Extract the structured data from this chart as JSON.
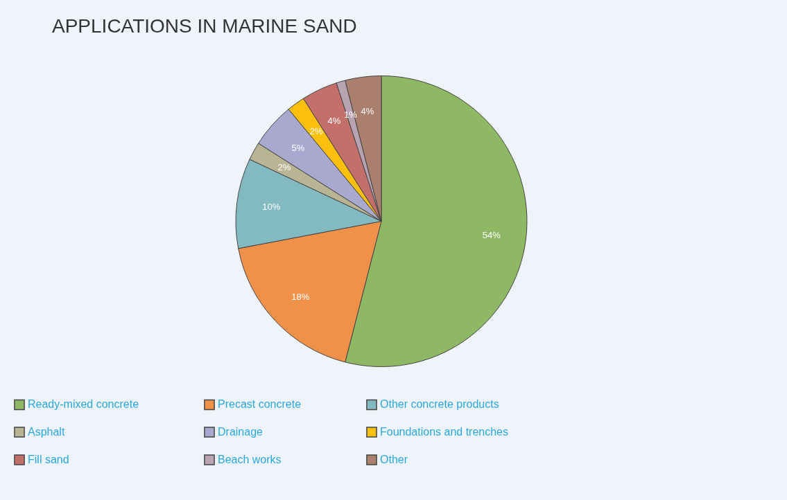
{
  "chart_data": {
    "type": "pie",
    "title": "APPLICATIONS IN MARINE SAND",
    "categories": [
      "Ready-mixed concrete",
      "Precast concrete",
      "Other concrete products",
      "Asphalt",
      "Drainage",
      "Foundations and trenches",
      "Fill sand",
      "Beach works",
      "Other"
    ],
    "values": [
      54,
      18,
      10,
      2,
      5,
      2,
      4,
      1,
      4
    ],
    "value_labels": [
      "54%",
      "18%",
      "10%",
      "2%",
      "5%",
      "2%",
      "4%",
      "1%",
      "4%"
    ],
    "colors": [
      "#8fb864",
      "#f0914a",
      "#83b9c1",
      "#b9b594",
      "#a9a8cf",
      "#fbbf0d",
      "#c3706c",
      "#b8a4b0",
      "#ab7f6d"
    ],
    "legend": "bottom"
  }
}
